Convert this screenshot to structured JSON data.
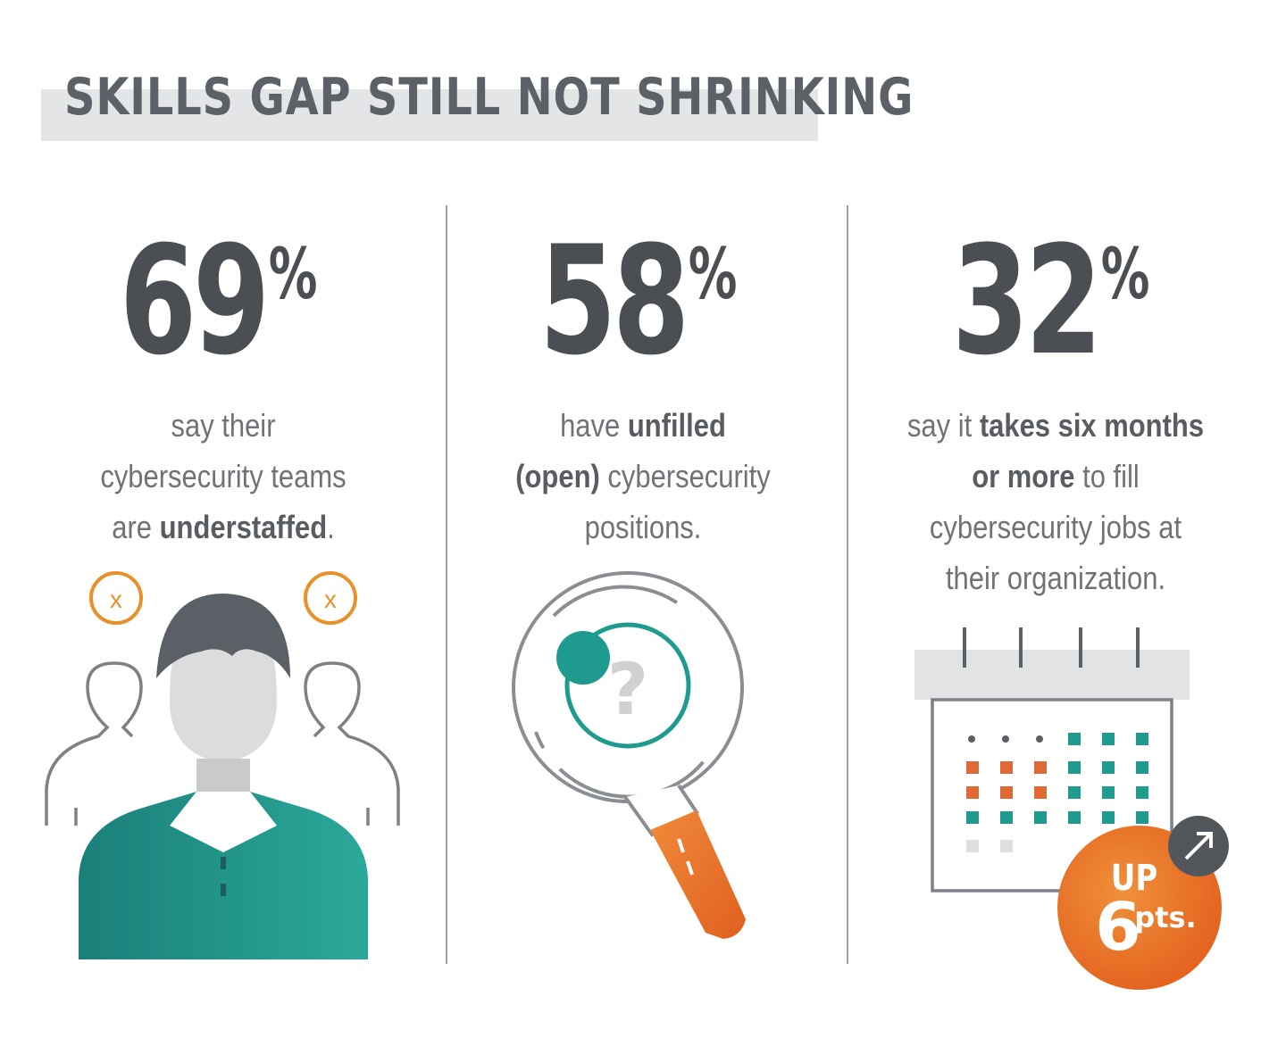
{
  "header": {
    "title": "SKILLS GAP STILL NOT SHRINKING"
  },
  "stats": [
    {
      "value": "69",
      "unit": "%",
      "text_lines": [
        [
          {
            "t": "say their",
            "b": false
          }
        ],
        [
          {
            "t": "cybersecurity teams",
            "b": false
          }
        ],
        [
          {
            "t": "are ",
            "b": false
          },
          {
            "t": "understaffed",
            "b": true
          },
          {
            "t": ".",
            "b": false
          }
        ]
      ],
      "icon": "understaffed-team-icon"
    },
    {
      "value": "58",
      "unit": "%",
      "text_lines": [
        [
          {
            "t": "have ",
            "b": false
          },
          {
            "t": "unfilled",
            "b": true
          }
        ],
        [
          {
            "t": "(open)",
            "b": true
          },
          {
            "t": " cybersecurity",
            "b": false
          }
        ],
        [
          {
            "t": "positions.",
            "b": false
          }
        ]
      ],
      "icon": "magnifying-glass-question-icon"
    },
    {
      "value": "32",
      "unit": "%",
      "text_lines": [
        [
          {
            "t": "say it ",
            "b": false
          },
          {
            "t": "takes six months",
            "b": true
          }
        ],
        [
          {
            "t": "or more",
            "b": true
          },
          {
            "t": " to fill",
            "b": false
          }
        ],
        [
          {
            "t": "cybersecurity jobs at",
            "b": false
          }
        ],
        [
          {
            "t": "their organization.",
            "b": false
          }
        ]
      ],
      "icon": "calendar-icon"
    }
  ],
  "badge": {
    "line1": "UP",
    "big": "6",
    "small": "pts.",
    "icon": "arrow-up-right-icon"
  },
  "colors": {
    "orange": "#e87b2c",
    "teal": "#1e9a8f",
    "dark": "#4b4e53",
    "grey": "#e4e5e7"
  }
}
